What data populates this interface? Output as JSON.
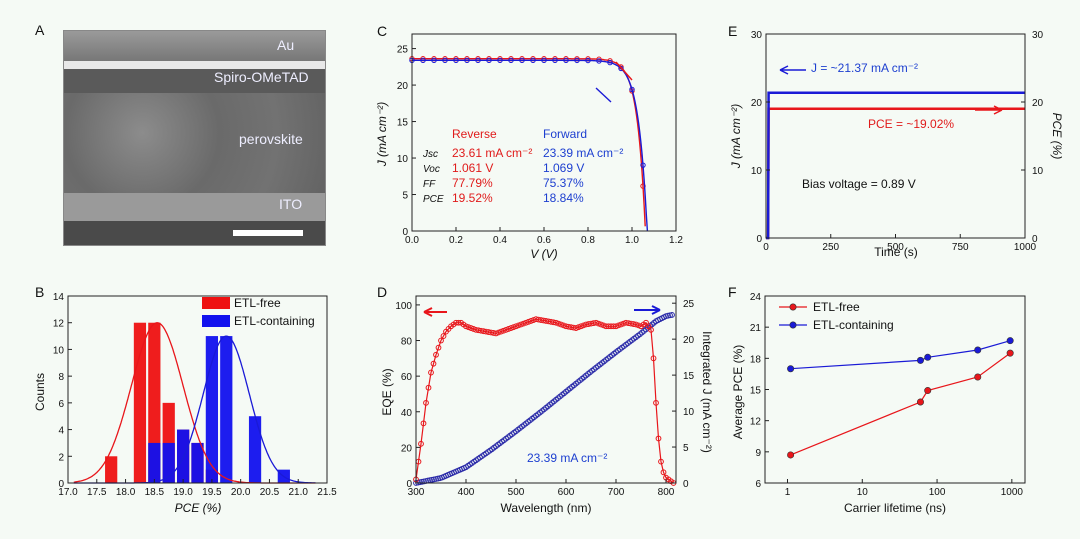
{
  "panels": {
    "A": {
      "letter": "A",
      "layers": [
        "Au",
        "Spiro-OMeTAD",
        "perovskite",
        "ITO"
      ]
    },
    "B": {
      "letter": "B"
    },
    "C": {
      "letter": "C"
    },
    "D": {
      "letter": "D"
    },
    "E": {
      "letter": "E"
    },
    "F": {
      "letter": "F"
    }
  },
  "colors": {
    "red": "#e8161b",
    "blue": "#1a1ad6",
    "text_red": "#e01b1b",
    "text_blue": "#1d3fd0"
  },
  "chart_data": [
    {
      "id": "B",
      "type": "bar",
      "xlabel": "PCE (%)",
      "ylabel": "Counts",
      "xlim": [
        17.0,
        21.5
      ],
      "ylim": [
        0,
        14
      ],
      "xticks": [
        "17.0",
        "17.5",
        "18.0",
        "18.5",
        "19.0",
        "19.5",
        "20.0",
        "20.5",
        "21.0",
        "21.5"
      ],
      "yticks": [
        "0",
        "2",
        "4",
        "6",
        "8",
        "10",
        "12",
        "14"
      ],
      "series": [
        {
          "name": "ETL-free",
          "color": "#ee1111",
          "bins": [
            17.75,
            18.25,
            18.5,
            18.75,
            19.0,
            19.25,
            19.5
          ],
          "values": [
            2,
            12,
            12,
            6,
            4,
            3,
            1
          ]
        },
        {
          "name": "ETL-containing",
          "color": "#1111ee",
          "bins": [
            18.5,
            18.75,
            19.0,
            19.25,
            19.5,
            19.75,
            20.25,
            20.75
          ],
          "values": [
            3,
            3,
            4,
            3,
            11,
            11,
            5,
            1
          ]
        }
      ],
      "fit_curves": [
        {
          "name": "ETL-free fit",
          "mean": 18.55,
          "sigma": 0.45,
          "peak": 12
        },
        {
          "name": "ETL-containing fit",
          "mean": 19.75,
          "sigma": 0.4,
          "peak": 11
        }
      ]
    },
    {
      "id": "C",
      "type": "line",
      "xlabel": "V (V)",
      "ylabel": "J (mA cm⁻²)",
      "xlim": [
        0.0,
        1.2
      ],
      "ylim": [
        0,
        27
      ],
      "xticks": [
        "0.0",
        "0.2",
        "0.4",
        "0.6",
        "0.8",
        "1.0",
        "1.2"
      ],
      "yticks": [
        "0",
        "5",
        "10",
        "15",
        "20",
        "25"
      ],
      "series": [
        {
          "name": "Reverse",
          "Jsc": 23.61,
          "Voc": 1.061,
          "FF": 77.79
        },
        {
          "name": "Forward",
          "Jsc": 23.39,
          "Voc": 1.069,
          "FF": 75.37
        }
      ],
      "table": {
        "headers": [
          "Reverse",
          "Forward"
        ],
        "rows": [
          {
            "param": "Jsc",
            "reverse": "23.61 mA cm⁻²",
            "forward": "23.39 mA cm⁻²"
          },
          {
            "param": "Voc",
            "reverse": "1.061 V",
            "forward": "1.069 V"
          },
          {
            "param": "FF",
            "reverse": "77.79%",
            "forward": "75.37%"
          },
          {
            "param": "PCE",
            "reverse": "19.52%",
            "forward": "18.84%"
          }
        ]
      }
    },
    {
      "id": "E",
      "type": "line",
      "xlabel": "Time (s)",
      "ylabel": "J (mA cm⁻²)",
      "y2label": "PCE (%)",
      "xlim": [
        0,
        1000
      ],
      "ylim": [
        0,
        30
      ],
      "y2lim": [
        0,
        30
      ],
      "xticks": [
        "0",
        "250",
        "500",
        "750",
        "1000"
      ],
      "yticks": [
        "0",
        "10",
        "20",
        "30"
      ],
      "y2ticks": [
        "0",
        "10",
        "20",
        "30"
      ],
      "series": [
        {
          "name": "J",
          "steady": 21.37
        },
        {
          "name": "PCE",
          "steady": 19.02
        }
      ],
      "annotations": [
        "J = ~21.37 mA cm⁻²",
        "PCE = ~19.02%",
        "Bias voltage = 0.89 V"
      ]
    },
    {
      "id": "D",
      "type": "line",
      "xlabel": "Wavelength (nm)",
      "ylabel": "EQE (%)",
      "y2label": "Integrated J (mA cm⁻²)",
      "xlim": [
        300,
        820
      ],
      "ylim": [
        0,
        105
      ],
      "y2lim": [
        0,
        26
      ],
      "xticks": [
        "300",
        "400",
        "500",
        "600",
        "700",
        "800"
      ],
      "yticks": [
        "0",
        "20",
        "40",
        "60",
        "80",
        "100"
      ],
      "y2ticks": [
        "0",
        "5",
        "10",
        "15",
        "20",
        "25"
      ],
      "eqe": {
        "x": [
          300,
          310,
          320,
          330,
          340,
          350,
          360,
          370,
          380,
          390,
          400,
          420,
          440,
          460,
          480,
          500,
          520,
          540,
          560,
          580,
          600,
          620,
          640,
          660,
          680,
          700,
          720,
          740,
          750,
          760,
          770,
          775,
          780,
          785,
          790,
          795,
          800,
          805,
          810,
          815
        ],
        "y": [
          2,
          22,
          45,
          62,
          72,
          80,
          85,
          88,
          90,
          90,
          88,
          86,
          85,
          84,
          86,
          88,
          90,
          92,
          91,
          90,
          88,
          87,
          89,
          90,
          88,
          88,
          90,
          89,
          88,
          90,
          86,
          70,
          45,
          25,
          12,
          6,
          3,
          2,
          1,
          0
        ]
      },
      "integrated": {
        "x": [
          300,
          350,
          400,
          450,
          500,
          550,
          600,
          650,
          700,
          750,
          780,
          800,
          810,
          815
        ],
        "y": [
          0,
          0.7,
          2.2,
          4.6,
          7.2,
          9.9,
          12.7,
          15.5,
          18.2,
          20.8,
          22.5,
          23.2,
          23.35,
          23.39
        ]
      },
      "annotation": "23.39 mA cm⁻²"
    },
    {
      "id": "F",
      "type": "line",
      "xlabel": "Carrier lifetime (ns)",
      "ylabel": "Average PCE (%)",
      "xscale": "log",
      "xlim": [
        0.5,
        1500
      ],
      "ylim": [
        6,
        24
      ],
      "xticks": [
        "1",
        "10",
        "100",
        "1000"
      ],
      "yticks": [
        "6",
        "9",
        "12",
        "15",
        "18",
        "21",
        "24"
      ],
      "series": [
        {
          "name": "ETL-free",
          "x": [
            1.1,
            60,
            75,
            350,
            950
          ],
          "y": [
            8.7,
            13.8,
            14.9,
            16.2,
            18.5
          ]
        },
        {
          "name": "ETL-containing",
          "x": [
            1.1,
            60,
            75,
            350,
            950
          ],
          "y": [
            17.0,
            17.8,
            18.1,
            18.8,
            19.7
          ]
        }
      ]
    }
  ]
}
